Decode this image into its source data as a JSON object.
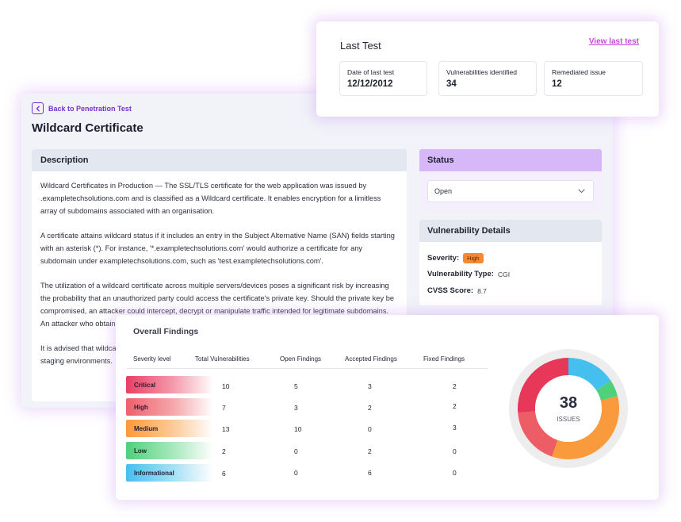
{
  "main": {
    "back_label": "Back to Penetration Test",
    "title": "Wildcard Certificate",
    "description": {
      "header": "Description",
      "paragraphs": [
        "Wildcard Certificates in Production — The SSL/TLS certificate for the web application was issued by .exampletechsolutions.com and is classified as a Wildcard certificate. It enables encryption for a limitless array of subdomains associated with an organisation.",
        "A certificate attains wildcard status if it includes an entry in the Subject Alternative Name (SAN) fields starting with an asterisk (*). For instance, '*.exampletechsolutions.com' would authorize a certificate for any subdomain under exampletechsolutions.com, such as 'test.exampletechsolutions.com'.",
        "The utilization of a wildcard certificate across multiple servers/devices poses a significant risk by increasing the probability that an unauthorized party could access the certificate's private key. Should the private key be compromised, an attacker could intercept, decrypt or manipulate traffic intended for legitimate subdomains. An attacker who obtains the private key could establish a new trust relationship.",
        "It is advised that wildcard certificates are avoided and that specific certificates are used for development and staging environments."
      ]
    },
    "status": {
      "header": "Status",
      "selected": "Open"
    },
    "vuln_details": {
      "header": "Vulnerability Details",
      "severity_label": "Severity:",
      "severity_value": "High",
      "severity_color": "#f4892f",
      "type_label": "Vulnerability Type:",
      "type_value": "CGI",
      "cvss_label": "CVSS Score:",
      "cvss_value": "8.7"
    }
  },
  "last_test": {
    "title": "Last Test",
    "link": "View last test",
    "stats": [
      {
        "label": "Date of last test",
        "value": "12/12/2012"
      },
      {
        "label": "Vulnerabilities identified",
        "value": "34"
      },
      {
        "label": "Remediated issue",
        "value": "12"
      }
    ]
  },
  "findings": {
    "title": "Overall Findings",
    "headers": [
      "Severity level",
      "Total Vulnerabilities",
      "Open Findings",
      "Accepted Findings",
      "Fixed Findings"
    ],
    "rows": [
      {
        "level": "Critical",
        "total": "10",
        "open": "5",
        "accepted": "3",
        "fixed": "2",
        "color": "#e8385a"
      },
      {
        "level": "High",
        "total": "7",
        "open": "3",
        "accepted": "2",
        "fixed": "2",
        "color": "#ec5d66"
      },
      {
        "level": "Medium",
        "total": "13",
        "open": "10",
        "accepted": "0",
        "fixed": "3",
        "color": "#f99a3c"
      },
      {
        "level": "Low",
        "total": "2",
        "open": "0",
        "accepted": "2",
        "fixed": "0",
        "color": "#4fd07a"
      },
      {
        "level": "Informational",
        "total": "6",
        "open": "0",
        "accepted": "6",
        "fixed": "0",
        "color": "#45c0ee"
      }
    ],
    "donut": {
      "total": "38",
      "label": "ISSUES",
      "segments": [
        {
          "name": "Critical",
          "value": 10,
          "color": "#e8385a"
        },
        {
          "name": "High",
          "value": 7,
          "color": "#ec5d66"
        },
        {
          "name": "Medium",
          "value": 13,
          "color": "#f99a3c"
        },
        {
          "name": "Low",
          "value": 2,
          "color": "#4fd07a"
        },
        {
          "name": "Informational",
          "value": 6,
          "color": "#45c0ee"
        }
      ]
    }
  }
}
